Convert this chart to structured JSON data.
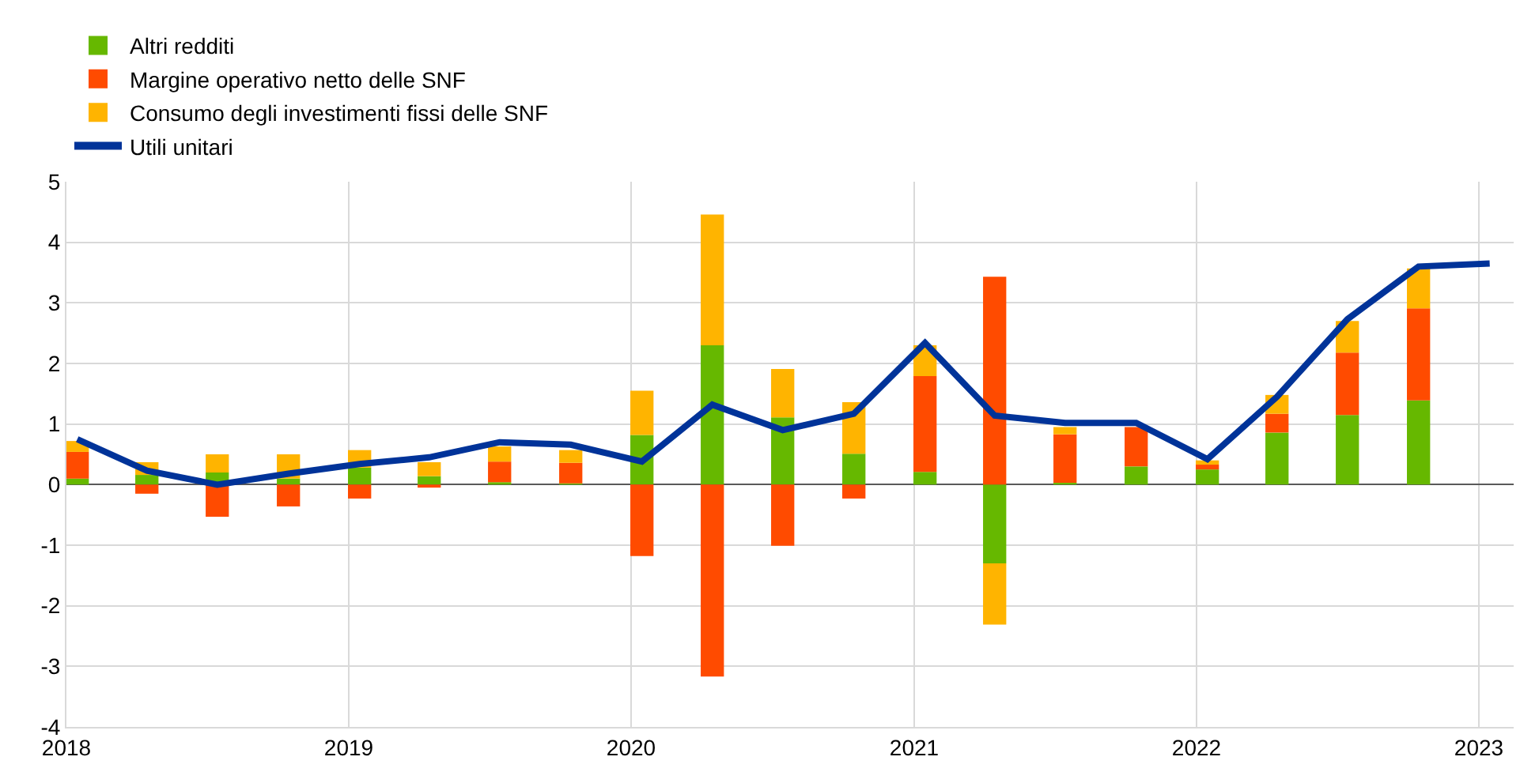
{
  "chart_data": {
    "type": "bar",
    "stacked": true,
    "x": [
      "2018-01-15",
      "2018-04-15",
      "2018-07-15",
      "2018-10-15",
      "2019-01-15",
      "2019-04-15",
      "2019-07-15",
      "2019-10-15",
      "2020-01-15",
      "2020-04-15",
      "2020-07-15",
      "2020-10-15",
      "2021-01-15",
      "2021-04-15",
      "2021-07-15",
      "2021-10-15",
      "2022-01-15",
      "2022-04-15",
      "2022-07-15",
      "2022-10-15"
    ],
    "series": [
      {
        "name": "Altri redditi",
        "color": "#66b800",
        "values": [
          0.1,
          0.16,
          0.2,
          0.1,
          0.28,
          0.14,
          0.04,
          0.02,
          0.82,
          2.3,
          1.11,
          0.51,
          0.21,
          -1.3,
          0.03,
          0.3,
          0.25,
          0.86,
          1.15,
          1.39
        ]
      },
      {
        "name": "Margine operativo netto delle SNF",
        "color": "#ff4b00",
        "values": [
          0.44,
          -0.15,
          -0.53,
          -0.36,
          -0.23,
          -0.05,
          0.34,
          0.34,
          -1.18,
          -3.17,
          -1.01,
          -0.23,
          1.58,
          3.43,
          0.8,
          0.65,
          0.08,
          0.31,
          1.03,
          1.52
        ]
      },
      {
        "name": "Consumo degli investimenti fissi delle SNF",
        "color": "#ffb400",
        "values": [
          0.18,
          0.21,
          0.3,
          0.4,
          0.29,
          0.23,
          0.25,
          0.21,
          0.73,
          2.16,
          0.8,
          0.85,
          0.51,
          -1.01,
          0.12,
          null,
          0.07,
          0.31,
          0.52,
          0.66
        ]
      },
      {
        "name": "Utili unitari",
        "type": "line",
        "color": "#003399",
        "x": [
          "2018-01-15",
          "2018-04-15",
          "2018-07-15",
          "2018-10-15",
          "2019-01-15",
          "2019-04-15",
          "2019-07-15",
          "2019-10-15",
          "2020-01-15",
          "2020-04-15",
          "2020-07-15",
          "2020-10-15",
          "2021-01-15",
          "2021-04-15",
          "2021-07-15",
          "2021-10-15",
          "2022-01-15",
          "2022-04-15",
          "2022-07-15",
          "2022-10-15",
          "2023-01-15"
        ],
        "values": [
          0.75,
          0.23,
          0.0,
          0.18,
          0.34,
          0.45,
          0.7,
          0.66,
          0.38,
          1.32,
          0.9,
          1.17,
          2.34,
          1.14,
          1.02,
          1.02,
          0.42,
          1.45,
          2.73,
          3.6,
          3.65
        ]
      }
    ],
    "xlim": [
      "2018-01-01",
      "2023-02-15"
    ],
    "xticks": [
      {
        "value": "2018-01-01",
        "label": "2018"
      },
      {
        "value": "2019-01-01",
        "label": "2019"
      },
      {
        "value": "2020-01-01",
        "label": "2020"
      },
      {
        "value": "2021-01-01",
        "label": "2021"
      },
      {
        "value": "2022-01-01",
        "label": "2022"
      },
      {
        "value": "2023-01-01",
        "label": "2023"
      }
    ],
    "ylim": [
      -4,
      5
    ],
    "yticks": [
      -4,
      -3,
      -2,
      -1,
      0,
      1,
      2,
      3,
      4,
      5
    ],
    "grid": true,
    "legend": "top left"
  }
}
